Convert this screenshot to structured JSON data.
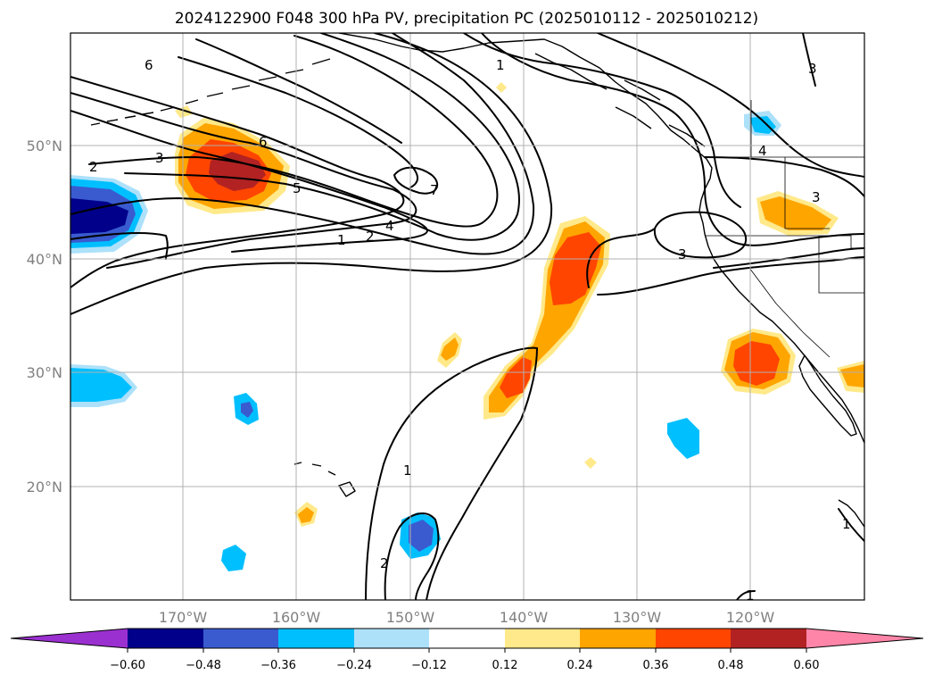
{
  "title": "2024122900 F048 300 hPa PV, precipitation PC (2025010112 - 2025010212)",
  "map": {
    "lon_labels": [
      "170°W",
      "160°W",
      "150°W",
      "140°W",
      "130°W",
      "120°W"
    ],
    "lat_labels": [
      "50°N",
      "40°N",
      "30°N",
      "20°N"
    ],
    "pv_contour_labels": [
      "6",
      "3",
      "2",
      "6",
      "5",
      "7",
      "4",
      "2",
      "1",
      "1",
      "4",
      "3",
      "3",
      "3",
      "1",
      "2",
      "1",
      "1"
    ]
  },
  "colorbar": {
    "ticks": [
      "−0.60",
      "−0.48",
      "−0.36",
      "−0.24",
      "−0.12",
      "0.12",
      "0.24",
      "0.36",
      "0.48",
      "0.60"
    ],
    "colors": [
      "#9b30d0",
      "#00008b",
      "#3a5bd0",
      "#00bfff",
      "#ade1fa",
      "#ffffff",
      "#ffe98a",
      "#ffa500",
      "#ff4500",
      "#b22222",
      "#ff85a8"
    ]
  }
}
